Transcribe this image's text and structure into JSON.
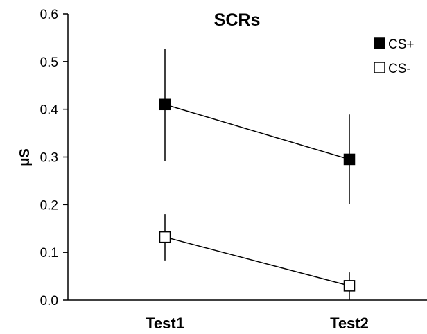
{
  "chart_data": {
    "type": "line",
    "title": "SCRs",
    "xlabel": "",
    "ylabel": "μS",
    "categories": [
      "Test1",
      "Test2"
    ],
    "ylim": [
      0,
      0.6
    ],
    "yticks": [
      "0.0",
      "0.1",
      "0.2",
      "0.3",
      "0.4",
      "0.5",
      "0.6"
    ],
    "legend_position": "top-right",
    "series": [
      {
        "name": "CS+",
        "values": [
          0.41,
          0.295
        ],
        "error_low": [
          0.292,
          0.202
        ],
        "error_high": [
          0.527,
          0.389
        ],
        "marker_fill": "#000000"
      },
      {
        "name": "CS-",
        "values": [
          0.132,
          0.03
        ],
        "error_low": [
          0.083,
          0.0
        ],
        "error_high": [
          0.18,
          0.058
        ],
        "marker_fill": "#ffffff"
      }
    ]
  }
}
